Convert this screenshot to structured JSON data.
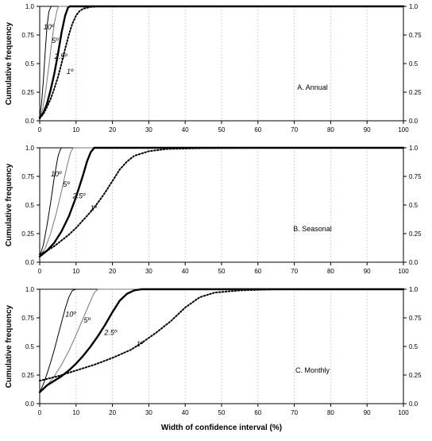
{
  "figure": {
    "xlabel": "Width of confidence interval (%)",
    "ylabel": "Cumulative  frequency"
  },
  "chart_data": [
    {
      "type": "line",
      "panel_label": "A. Annual",
      "xlabel": "",
      "ylabel": "Cumulative  frequency",
      "xlim": [
        0,
        100
      ],
      "ylim": [
        0,
        1
      ],
      "xticks": [
        0,
        10,
        20,
        30,
        40,
        50,
        60,
        70,
        80,
        90,
        100
      ],
      "yticks": [
        "0.0",
        "0.25",
        "0.5",
        "0.75",
        "1.0"
      ],
      "grid": true,
      "series": [
        {
          "name": "10º",
          "style": "thin",
          "x": [
            0,
            0.5,
            1,
            1.5,
            2,
            2.5,
            3,
            3.2,
            100
          ],
          "y": [
            0.03,
            0.15,
            0.35,
            0.6,
            0.82,
            0.95,
            0.99,
            1.0,
            1.0
          ]
        },
        {
          "name": "5º",
          "style": "thin-gray",
          "x": [
            0,
            0.8,
            1.6,
            2.4,
            3.2,
            4,
            4.8,
            5.2,
            100
          ],
          "y": [
            0.03,
            0.1,
            0.25,
            0.45,
            0.66,
            0.85,
            0.97,
            1.0,
            1.0
          ]
        },
        {
          "name": "2.5º",
          "style": "thick",
          "x": [
            0,
            1,
            2,
            3,
            4,
            5,
            6,
            7,
            7.8,
            8.3,
            100
          ],
          "y": [
            0.03,
            0.07,
            0.15,
            0.27,
            0.41,
            0.58,
            0.77,
            0.92,
            0.99,
            1.0,
            1.0
          ]
        },
        {
          "name": "1º",
          "style": "dotted",
          "x": [
            0,
            1,
            2,
            3,
            4,
            5,
            6,
            7,
            8,
            9,
            10,
            11,
            12,
            14,
            16,
            100
          ],
          "y": [
            0.02,
            0.06,
            0.12,
            0.19,
            0.28,
            0.38,
            0.5,
            0.63,
            0.75,
            0.85,
            0.92,
            0.96,
            0.98,
            0.995,
            1.0,
            1.0
          ]
        }
      ],
      "labels": [
        {
          "text": "10º",
          "x": 2.5,
          "y": 0.8
        },
        {
          "text": "5º",
          "x": 4.2,
          "y": 0.68
        },
        {
          "text": "2.5º",
          "x": 5.8,
          "y": 0.54
        },
        {
          "text": "1º",
          "x": 8.3,
          "y": 0.41
        }
      ]
    },
    {
      "type": "line",
      "panel_label": "B. Seasonal",
      "xlabel": "",
      "ylabel": "Cumulative  frequency",
      "xlim": [
        0,
        100
      ],
      "ylim": [
        0,
        1
      ],
      "xticks": [
        0,
        10,
        20,
        30,
        40,
        50,
        60,
        70,
        80,
        90,
        100
      ],
      "yticks": [
        "0.0",
        "0.25",
        "0.5",
        "0.75",
        "1.0"
      ],
      "grid": true,
      "series": [
        {
          "name": "10º",
          "style": "thin",
          "x": [
            0,
            1,
            2,
            3,
            4,
            5,
            5.6,
            6,
            100
          ],
          "y": [
            0.05,
            0.15,
            0.32,
            0.52,
            0.74,
            0.92,
            0.98,
            1.0,
            1.0
          ]
        },
        {
          "name": "5º",
          "style": "thin-gray",
          "x": [
            0,
            1.5,
            3,
            4.5,
            6,
            7.5,
            8.5,
            9.2,
            100
          ],
          "y": [
            0.05,
            0.12,
            0.25,
            0.42,
            0.62,
            0.84,
            0.96,
            1.0,
            1.0
          ]
        },
        {
          "name": "2.5º",
          "style": "thick",
          "x": [
            0,
            2,
            4,
            6,
            8,
            10,
            12,
            13,
            14,
            15,
            100
          ],
          "y": [
            0.05,
            0.1,
            0.17,
            0.27,
            0.4,
            0.57,
            0.77,
            0.88,
            0.96,
            1.0,
            1.0
          ]
        },
        {
          "name": "1º",
          "style": "dotted",
          "x": [
            0,
            2,
            4,
            6,
            8,
            10,
            12,
            14,
            16,
            18,
            20,
            22,
            24,
            26,
            30,
            35,
            45,
            60,
            100
          ],
          "y": [
            0.07,
            0.1,
            0.14,
            0.19,
            0.24,
            0.3,
            0.37,
            0.44,
            0.52,
            0.61,
            0.71,
            0.81,
            0.88,
            0.93,
            0.97,
            0.99,
            0.997,
            1.0,
            1.0
          ]
        }
      ],
      "labels": [
        {
          "text": "10º",
          "x": 4.5,
          "y": 0.75
        },
        {
          "text": "5º",
          "x": 7.3,
          "y": 0.66
        },
        {
          "text": "2.5º",
          "x": 10.8,
          "y": 0.56
        },
        {
          "text": "1º",
          "x": 14.8,
          "y": 0.45
        }
      ]
    },
    {
      "type": "line",
      "panel_label": "C. Monthly",
      "xlabel": "Width of confidence interval (%)",
      "ylabel": "Cumulative  frequency",
      "xlim": [
        0,
        100
      ],
      "ylim": [
        0,
        1
      ],
      "xticks": [
        0,
        10,
        20,
        30,
        40,
        50,
        60,
        70,
        80,
        90,
        100
      ],
      "yticks": [
        "0.0",
        "0.25",
        "0.5",
        "0.75",
        "1.0"
      ],
      "grid": true,
      "series": [
        {
          "name": "10º",
          "style": "thin",
          "x": [
            0,
            1,
            2,
            3,
            4,
            5,
            6,
            7,
            8,
            9,
            10,
            100
          ],
          "y": [
            0.1,
            0.17,
            0.26,
            0.36,
            0.47,
            0.59,
            0.71,
            0.83,
            0.93,
            0.99,
            1.0,
            1.0
          ]
        },
        {
          "name": "5º",
          "style": "thin-gray",
          "x": [
            0,
            2,
            4,
            6,
            8,
            10,
            12,
            14,
            15,
            16,
            100
          ],
          "y": [
            0.1,
            0.16,
            0.24,
            0.34,
            0.46,
            0.6,
            0.75,
            0.9,
            0.97,
            1.0,
            1.0
          ]
        },
        {
          "name": "2.5º",
          "style": "thick",
          "x": [
            0,
            2,
            4,
            6,
            8,
            10,
            12,
            14,
            16,
            18,
            20,
            22,
            24,
            26,
            28,
            100
          ],
          "y": [
            0.1,
            0.16,
            0.2,
            0.24,
            0.29,
            0.35,
            0.42,
            0.5,
            0.59,
            0.69,
            0.8,
            0.9,
            0.96,
            0.99,
            1.0,
            1.0
          ]
        },
        {
          "name": "1º",
          "style": "dotted",
          "x": [
            0,
            5,
            10,
            15,
            20,
            25,
            28,
            32,
            36,
            40,
            44,
            48,
            55,
            65,
            100
          ],
          "y": [
            0.2,
            0.24,
            0.29,
            0.34,
            0.4,
            0.47,
            0.53,
            0.62,
            0.72,
            0.84,
            0.93,
            0.97,
            0.99,
            1.0,
            1.0
          ]
        }
      ],
      "labels": [
        {
          "text": "10º",
          "x": 8.5,
          "y": 0.76
        },
        {
          "text": "5º",
          "x": 13,
          "y": 0.71
        },
        {
          "text": "2.5º",
          "x": 19.5,
          "y": 0.6
        },
        {
          "text": "1º",
          "x": 27.5,
          "y": 0.5
        }
      ]
    }
  ]
}
